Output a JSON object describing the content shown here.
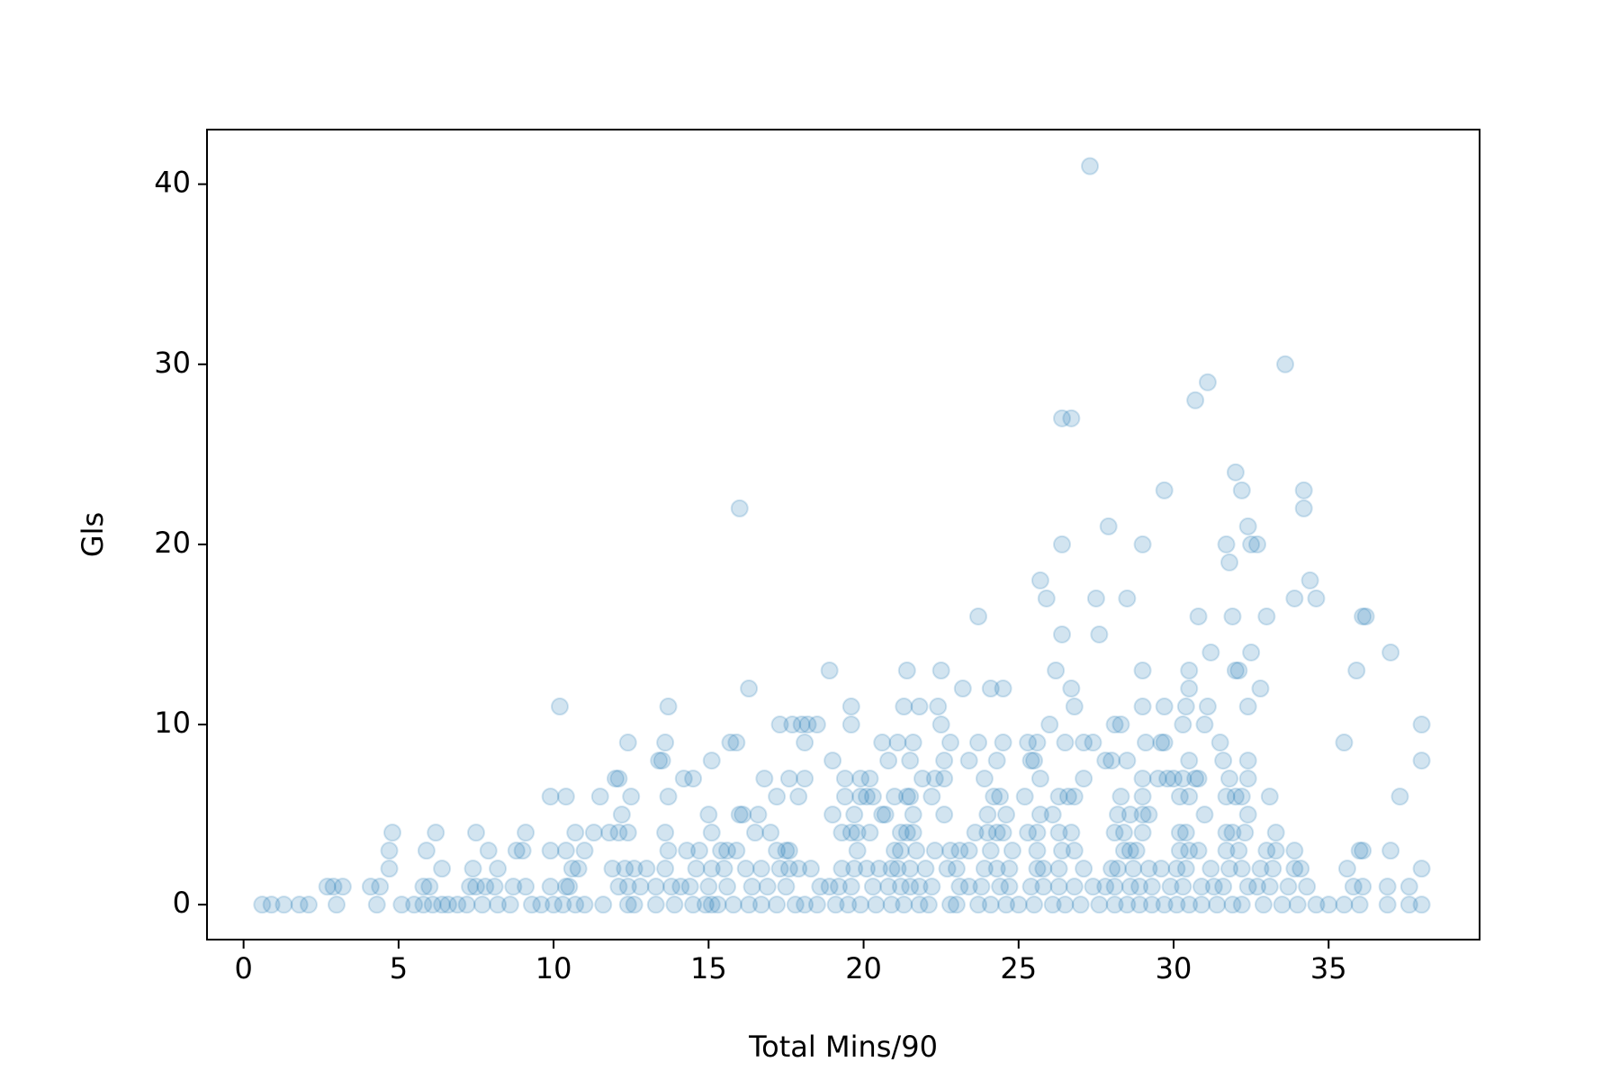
{
  "chart_data": {
    "type": "scatter",
    "xlabel": "Total Mins/90",
    "ylabel": "Gls",
    "color": "#1f77b4",
    "opacity": 0.2,
    "xlim": [
      -1.18,
      39.87
    ],
    "ylim": [
      -1.94,
      43.03
    ],
    "xticks": [
      0,
      5,
      10,
      15,
      20,
      25,
      30,
      35
    ],
    "yticks": [
      0,
      10,
      20,
      30,
      40
    ],
    "x": [
      27.3,
      33.6,
      31.1,
      30.7,
      26.4,
      26.7,
      34.2,
      29.7,
      32.0,
      32.2,
      16.0,
      34.2,
      27.9,
      32.4,
      26.4,
      29.0,
      31.7,
      32.5,
      32.7,
      31.8,
      25.7,
      34.4,
      25.9,
      27.5,
      28.5,
      33.9,
      34.6,
      23.7,
      30.8,
      31.9,
      33.0,
      36.1,
      36.2,
      26.4,
      27.6,
      31.2,
      32.5,
      37.0,
      35.9,
      26.2,
      29.0,
      30.5,
      32.0,
      32.1,
      18.9,
      21.4,
      22.5,
      16.3,
      23.2,
      24.1,
      24.5,
      26.7,
      30.5,
      32.8,
      10.2,
      13.7,
      19.6,
      21.3,
      21.8,
      22.4,
      26.8,
      29.0,
      30.4,
      31.1,
      32.4,
      29.7,
      17.3,
      17.7,
      18.0,
      18.2,
      18.5,
      19.6,
      22.5,
      26.0,
      28.1,
      28.3,
      30.3,
      31.0,
      38.0,
      12.4,
      13.6,
      15.7,
      15.9,
      18.1,
      20.6,
      21.1,
      21.6,
      22.8,
      23.7,
      24.5,
      25.3,
      25.6,
      26.5,
      27.1,
      27.4,
      29.1,
      29.6,
      29.7,
      31.5,
      35.5,
      13.4,
      13.5,
      15.1,
      19.0,
      20.8,
      21.5,
      22.6,
      23.4,
      24.3,
      25.4,
      25.5,
      27.8,
      28.0,
      28.5,
      30.5,
      31.6,
      32.4,
      38.0,
      12.0,
      12.1,
      14.2,
      14.5,
      16.8,
      17.6,
      18.1,
      19.4,
      19.9,
      20.2,
      21.9,
      22.3,
      22.6,
      23.9,
      25.7,
      27.1,
      29.0,
      29.5,
      29.8,
      30.0,
      30.3,
      30.7,
      30.8,
      31.8,
      32.4,
      9.9,
      10.4,
      11.5,
      12.5,
      13.7,
      17.2,
      17.9,
      19.4,
      19.9,
      20.1,
      20.3,
      21.0,
      21.4,
      21.5,
      22.2,
      24.2,
      24.4,
      25.2,
      26.3,
      26.6,
      26.8,
      28.3,
      29.0,
      30.2,
      30.5,
      31.7,
      32.0,
      32.2,
      33.1,
      37.3,
      12.2,
      15.0,
      16.0,
      16.1,
      16.6,
      19.0,
      19.7,
      20.6,
      20.7,
      21.6,
      22.6,
      24.0,
      24.6,
      25.7,
      26.1,
      28.2,
      28.6,
      29.0,
      29.2,
      31.0,
      32.4,
      4.8,
      6.2,
      7.5,
      9.1,
      10.7,
      11.3,
      11.8,
      12.1,
      12.4,
      13.6,
      15.1,
      16.5,
      17.0,
      19.3,
      19.6,
      19.8,
      20.2,
      21.2,
      21.4,
      21.6,
      23.6,
      24.0,
      24.3,
      24.5,
      25.3,
      25.6,
      26.3,
      26.7,
      28.1,
      28.4,
      29.0,
      30.2,
      30.4,
      31.7,
      31.9,
      32.3,
      33.3,
      4.7,
      5.9,
      7.9,
      8.8,
      9.0,
      9.9,
      10.4,
      11.0,
      13.7,
      14.3,
      14.7,
      15.4,
      15.6,
      15.9,
      17.2,
      17.5,
      17.6,
      19.8,
      21.0,
      21.2,
      21.7,
      22.3,
      22.8,
      23.1,
      23.4,
      24.1,
      24.8,
      25.6,
      26.4,
      26.8,
      28.4,
      28.6,
      28.8,
      30.2,
      30.5,
      30.8,
      31.7,
      32.1,
      33.0,
      33.3,
      33.9,
      36.0,
      36.1,
      37.0,
      4.7,
      6.4,
      7.4,
      8.2,
      10.6,
      10.8,
      11.9,
      12.3,
      12.6,
      13.0,
      13.6,
      14.6,
      15.1,
      15.5,
      16.2,
      16.7,
      17.3,
      17.6,
      17.9,
      18.3,
      19.3,
      19.7,
      20.1,
      20.5,
      20.9,
      21.1,
      21.5,
      22.0,
      22.7,
      23.0,
      23.9,
      24.3,
      24.7,
      25.6,
      25.8,
      26.3,
      27.1,
      28.0,
      28.2,
      28.7,
      29.2,
      29.6,
      30.1,
      30.4,
      31.2,
      31.8,
      32.2,
      32.8,
      33.2,
      33.9,
      34.1,
      35.6,
      38.0,
      2.7,
      2.9,
      3.2,
      4.1,
      4.4,
      5.8,
      6.0,
      7.3,
      7.5,
      7.8,
      8.1,
      8.7,
      9.1,
      9.9,
      10.4,
      10.5,
      12.1,
      12.4,
      12.8,
      13.3,
      13.8,
      14.1,
      14.4,
      15.0,
      15.6,
      16.4,
      16.9,
      17.5,
      18.6,
      18.9,
      19.2,
      19.6,
      20.3,
      20.8,
      21.2,
      21.5,
      21.8,
      22.2,
      23.1,
      23.4,
      23.8,
      24.4,
      24.7,
      25.4,
      25.8,
      26.3,
      26.8,
      27.4,
      27.8,
      28.1,
      28.6,
      28.9,
      29.3,
      29.9,
      30.3,
      30.9,
      31.3,
      31.6,
      32.4,
      32.7,
      33.1,
      33.7,
      34.3,
      35.8,
      36.1,
      36.9,
      37.6,
      0.6,
      0.9,
      1.3,
      1.8,
      2.1,
      3.0,
      4.3,
      5.1,
      5.5,
      5.8,
      6.1,
      6.4,
      6.6,
      6.9,
      7.2,
      7.7,
      8.2,
      8.6,
      9.3,
      9.6,
      10.0,
      10.3,
      10.7,
      11.0,
      11.6,
      12.4,
      12.6,
      13.3,
      13.9,
      14.5,
      14.9,
      15.1,
      15.3,
      15.8,
      16.3,
      16.7,
      17.2,
      17.8,
      18.1,
      18.5,
      19.1,
      19.5,
      19.9,
      20.4,
      20.9,
      21.3,
      21.8,
      22.1,
      22.8,
      23.0,
      23.7,
      24.1,
      24.6,
      25.0,
      25.5,
      26.1,
      26.5,
      27.0,
      27.6,
      28.1,
      28.5,
      28.9,
      29.3,
      29.7,
      30.1,
      30.5,
      30.9,
      31.4,
      31.9,
      32.2,
      32.9,
      33.5,
      34.0,
      34.6,
      35.0,
      35.5,
      36.0,
      36.9,
      37.6,
      38.0
    ],
    "values": [
      41,
      30,
      29,
      28,
      27,
      27,
      23,
      23,
      24,
      23,
      22,
      22,
      21,
      21,
      20,
      20,
      20,
      20,
      20,
      19,
      18,
      18,
      17,
      17,
      17,
      17,
      17,
      16,
      16,
      16,
      16,
      16,
      16,
      15,
      15,
      14,
      14,
      14,
      13,
      13,
      13,
      13,
      13,
      13,
      13,
      13,
      13,
      12,
      12,
      12,
      12,
      12,
      12,
      12,
      11,
      11,
      11,
      11,
      11,
      11,
      11,
      11,
      11,
      11,
      11,
      11,
      10,
      10,
      10,
      10,
      10,
      10,
      10,
      10,
      10,
      10,
      10,
      10,
      10,
      9,
      9,
      9,
      9,
      9,
      9,
      9,
      9,
      9,
      9,
      9,
      9,
      9,
      9,
      9,
      9,
      9,
      9,
      9,
      9,
      9,
      8,
      8,
      8,
      8,
      8,
      8,
      8,
      8,
      8,
      8,
      8,
      8,
      8,
      8,
      8,
      8,
      8,
      8,
      7,
      7,
      7,
      7,
      7,
      7,
      7,
      7,
      7,
      7,
      7,
      7,
      7,
      7,
      7,
      7,
      7,
      7,
      7,
      7,
      7,
      7,
      7,
      7,
      7,
      6,
      6,
      6,
      6,
      6,
      6,
      6,
      6,
      6,
      6,
      6,
      6,
      6,
      6,
      6,
      6,
      6,
      6,
      6,
      6,
      6,
      6,
      6,
      6,
      6,
      6,
      6,
      6,
      6,
      6,
      5,
      5,
      5,
      5,
      5,
      5,
      5,
      5,
      5,
      5,
      5,
      5,
      5,
      5,
      5,
      5,
      5,
      5,
      5,
      5,
      5,
      4,
      4,
      4,
      4,
      4,
      4,
      4,
      4,
      4,
      4,
      4,
      4,
      4,
      4,
      4,
      4,
      4,
      4,
      4,
      4,
      4,
      4,
      4,
      4,
      4,
      4,
      4,
      4,
      4,
      4,
      4,
      4,
      4,
      4,
      4,
      4,
      4,
      3,
      3,
      3,
      3,
      3,
      3,
      3,
      3,
      3,
      3,
      3,
      3,
      3,
      3,
      3,
      3,
      3,
      3,
      3,
      3,
      3,
      3,
      3,
      3,
      3,
      3,
      3,
      3,
      3,
      3,
      3,
      3,
      3,
      3,
      3,
      3,
      3,
      3,
      3,
      3,
      3,
      3,
      3,
      3,
      2,
      2,
      2,
      2,
      2,
      2,
      2,
      2,
      2,
      2,
      2,
      2,
      2,
      2,
      2,
      2,
      2,
      2,
      2,
      2,
      2,
      2,
      2,
      2,
      2,
      2,
      2,
      2,
      2,
      2,
      2,
      2,
      2,
      2,
      2,
      2,
      2,
      2,
      2,
      2,
      2,
      2,
      2,
      2,
      2,
      2,
      2,
      2,
      2,
      2,
      2,
      2,
      2,
      1,
      1,
      1,
      1,
      1,
      1,
      1,
      1,
      1,
      1,
      1,
      1,
      1,
      1,
      1,
      1,
      1,
      1,
      1,
      1,
      1,
      1,
      1,
      1,
      1,
      1,
      1,
      1,
      1,
      1,
      1,
      1,
      1,
      1,
      1,
      1,
      1,
      1,
      1,
      1,
      1,
      1,
      1,
      1,
      1,
      1,
      1,
      1,
      1,
      1,
      1,
      1,
      1,
      1,
      1,
      1,
      1,
      1,
      1,
      1,
      1,
      1,
      1,
      1,
      1,
      1,
      1,
      0,
      0,
      0,
      0,
      0,
      0,
      0,
      0,
      0,
      0,
      0,
      0,
      0,
      0,
      0,
      0,
      0,
      0,
      0,
      0,
      0,
      0,
      0,
      0,
      0,
      0,
      0,
      0,
      0,
      0,
      0,
      0,
      0,
      0,
      0,
      0,
      0,
      0,
      0,
      0,
      0,
      0,
      0,
      0,
      0,
      0,
      0,
      0,
      0,
      0,
      0,
      0,
      0,
      0,
      0,
      0,
      0,
      0,
      0,
      0,
      0,
      0,
      0,
      0,
      0,
      0,
      0,
      0,
      0,
      0,
      0,
      0,
      0,
      0,
      0,
      0,
      0,
      0,
      0,
      0
    ]
  }
}
